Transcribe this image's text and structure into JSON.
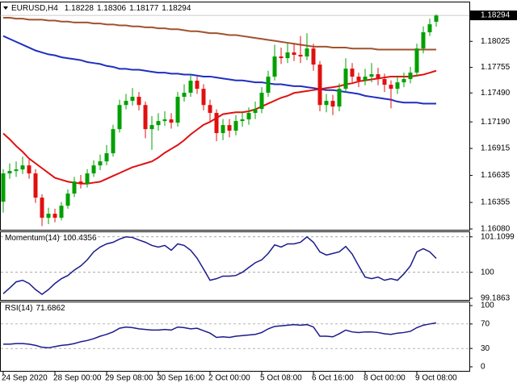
{
  "chart_data": [
    {
      "type": "candlestick",
      "title": "EURUSD,H4",
      "categories": [
        "24 Sep 2020",
        null,
        null,
        null,
        null,
        null,
        null,
        null,
        "28 Sep 00:00",
        null,
        null,
        null,
        null,
        null,
        null,
        null,
        "29 Sep 08:00",
        null,
        null,
        null,
        null,
        null,
        null,
        null,
        "30 Sep 16:00",
        null,
        null,
        null,
        null,
        null,
        null,
        null,
        "2 Oct 00:00",
        null,
        null,
        null,
        null,
        null,
        null,
        null,
        "5 Oct 08:00",
        null,
        null,
        null,
        null,
        null,
        null,
        null,
        "6 Oct 16:00",
        null,
        null,
        null,
        null,
        null,
        null,
        null,
        "8 Oct 00:00",
        null,
        null,
        null,
        null,
        null,
        null,
        null,
        "9 Oct 08:00",
        null,
        null,
        null
      ],
      "open": [
        1.16363,
        1.16656,
        1.16681,
        1.16697,
        1.16739,
        1.16656,
        1.16405,
        1.16196,
        1.16238,
        1.16196,
        1.16321,
        1.16447,
        1.16572,
        1.16547,
        1.16656,
        1.16739,
        1.16781,
        1.16865,
        1.17115,
        1.17365,
        1.17408,
        1.1745,
        1.17365,
        1.17115,
        1.17157,
        1.17199,
        1.17216,
        1.17182,
        1.1745,
        1.17492,
        1.17617,
        1.17533,
        1.17365,
        1.17283,
        1.17074,
        1.17157,
        1.17099,
        1.17199,
        1.17216,
        1.17283,
        1.17324,
        1.17492,
        1.17659,
        1.17868,
        1.17851,
        1.1791,
        1.17885,
        1.17868,
        1.17951,
        1.17784,
        1.17365,
        1.17408,
        1.17349,
        1.17533,
        1.17742,
        1.17659,
        1.17617,
        1.17659,
        1.17684,
        1.17634,
        1.17575,
        1.17533,
        1.176,
        1.17634,
        1.17701,
        1.17951,
        1.18119,
        1.18228
      ],
      "high": [
        1.167,
        1.1676,
        1.1678,
        1.1683,
        1.168,
        1.167,
        1.1644,
        1.163,
        1.1629,
        1.1636,
        1.1649,
        1.1662,
        1.1664,
        1.167,
        1.1679,
        1.1685,
        1.1695,
        1.1716,
        1.1742,
        1.1748,
        1.1754,
        1.175,
        1.174,
        1.1725,
        1.1728,
        1.173,
        1.1728,
        1.175,
        1.1758,
        1.1768,
        1.1766,
        1.1758,
        1.1742,
        1.1732,
        1.1722,
        1.1722,
        1.1726,
        1.1729,
        1.1734,
        1.174,
        1.1755,
        1.1772,
        1.1799,
        1.1796,
        1.1801,
        1.18,
        1.1808,
        1.1811,
        1.18,
        1.1782,
        1.1748,
        1.1747,
        1.1759,
        1.1785,
        1.178,
        1.177,
        1.1774,
        1.178,
        1.1775,
        1.1769,
        1.1762,
        1.1767,
        1.177,
        1.1776,
        1.18,
        1.1818,
        1.1826,
        1.18306
      ],
      "low": [
        1.1625,
        1.166,
        1.1662,
        1.1665,
        1.166,
        1.1635,
        1.1611,
        1.1613,
        1.1615,
        1.1617,
        1.1629,
        1.1641,
        1.165,
        1.1651,
        1.1662,
        1.1669,
        1.1674,
        1.1683,
        1.1708,
        1.1732,
        1.1736,
        1.1731,
        1.1702,
        1.169,
        1.171,
        1.1715,
        1.1712,
        1.1714,
        1.174,
        1.1745,
        1.1748,
        1.1731,
        1.172,
        1.1699,
        1.17,
        1.1703,
        1.1705,
        1.1714,
        1.1716,
        1.1722,
        1.1728,
        1.1745,
        1.1762,
        1.1779,
        1.178,
        1.1782,
        1.178,
        1.1783,
        1.1772,
        1.173,
        1.1729,
        1.1726,
        1.173,
        1.175,
        1.176,
        1.1755,
        1.1757,
        1.176,
        1.1757,
        1.175,
        1.1733,
        1.1748,
        1.1755,
        1.1759,
        1.1766,
        1.179,
        1.1808,
        1.18177
      ],
      "close": [
        1.16656,
        1.16681,
        1.16697,
        1.16739,
        1.16656,
        1.16405,
        1.16196,
        1.16238,
        1.16196,
        1.16321,
        1.16447,
        1.16572,
        1.16547,
        1.16656,
        1.16739,
        1.16781,
        1.16865,
        1.17115,
        1.17365,
        1.17408,
        1.1745,
        1.17365,
        1.17115,
        1.17157,
        1.17199,
        1.17216,
        1.17182,
        1.1745,
        1.17492,
        1.17617,
        1.17533,
        1.17365,
        1.17283,
        1.17074,
        1.17157,
        1.17099,
        1.17199,
        1.17216,
        1.17283,
        1.17324,
        1.17492,
        1.17659,
        1.17868,
        1.17851,
        1.1791,
        1.17885,
        1.17868,
        1.17951,
        1.17784,
        1.17365,
        1.17408,
        1.17349,
        1.17533,
        1.17742,
        1.17659,
        1.17617,
        1.17659,
        1.17684,
        1.17634,
        1.17575,
        1.17533,
        1.176,
        1.17634,
        1.17701,
        1.17951,
        1.18119,
        1.18202,
        1.18294
      ],
      "up_color": "#00a000",
      "down_color": "#e01010",
      "series": [
        {
          "color": "#a0522d",
          "values": [
            1.1827,
            1.1827,
            1.1826,
            1.1826,
            1.1825,
            1.1825,
            1.1825,
            1.1824,
            1.1824,
            1.1823,
            1.1823,
            1.1822,
            1.1822,
            1.1822,
            1.1821,
            1.1821,
            1.182,
            1.182,
            1.1819,
            1.1819,
            1.1818,
            1.1818,
            1.1817,
            1.1817,
            1.1816,
            1.1816,
            1.1815,
            1.1815,
            1.1814,
            1.1813,
            1.1813,
            1.1812,
            1.1811,
            1.1811,
            1.181,
            1.1809,
            1.1809,
            1.1808,
            1.1807,
            1.1806,
            1.1805,
            1.1804,
            1.1803,
            1.1802,
            1.1801,
            1.18,
            1.1799,
            1.1798,
            1.1797,
            1.1797,
            1.1797,
            1.1796,
            1.1796,
            1.1796,
            1.1795,
            1.1795,
            1.1795,
            1.1795,
            1.1794,
            1.1794,
            1.1794,
            1.1794,
            1.1794,
            1.1794,
            1.1794,
            1.1794,
            1.1794,
            1.1794
          ]
        },
        {
          "color": "#1f2fbf",
          "values": [
            1.1808,
            1.1805,
            1.1802,
            1.1799,
            1.1796,
            1.1793,
            1.1791,
            1.1789,
            1.1788,
            1.1786,
            1.1785,
            1.1784,
            1.1783,
            1.1781,
            1.178,
            1.1779,
            1.1777,
            1.1776,
            1.1774,
            1.1774,
            1.1773,
            1.1773,
            1.1772,
            1.1771,
            1.177,
            1.177,
            1.1769,
            1.1769,
            1.1768,
            1.1768,
            1.1767,
            1.1766,
            1.1766,
            1.1765,
            1.1764,
            1.1763,
            1.1762,
            1.1762,
            1.1761,
            1.176,
            1.176,
            1.1759,
            1.1758,
            1.1758,
            1.1757,
            1.1756,
            1.1756,
            1.1755,
            1.1754,
            1.1753,
            1.1752,
            1.1752,
            1.1751,
            1.175,
            1.1749,
            1.1748,
            1.1746,
            1.1745,
            1.1744,
            1.1743,
            1.1742,
            1.174,
            1.1739,
            1.1739,
            1.1739,
            1.1738,
            1.1738,
            1.1738
          ]
        },
        {
          "color": "#e01010",
          "values": [
            1.1707,
            1.1701,
            1.1694,
            1.1688,
            1.1681,
            1.1676,
            1.1671,
            1.1666,
            1.1661,
            1.1659,
            1.1657,
            1.1656,
            1.1655,
            1.1655,
            1.1656,
            1.1657,
            1.166,
            1.1663,
            1.1666,
            1.1669,
            1.1672,
            1.1674,
            1.1676,
            1.1678,
            1.1682,
            1.1687,
            1.1691,
            1.1695,
            1.17,
            1.1706,
            1.1711,
            1.1716,
            1.1719,
            1.1723,
            1.1727,
            1.1728,
            1.1729,
            1.1729,
            1.173,
            1.1732,
            1.1735,
            1.1738,
            1.1741,
            1.1744,
            1.1746,
            1.1749,
            1.175,
            1.1751,
            1.1752,
            1.1753,
            1.1754,
            1.1755,
            1.1756,
            1.1758,
            1.1759,
            1.1761,
            1.1762,
            1.1763,
            1.1764,
            1.1765,
            1.1766,
            1.1766,
            1.1766,
            1.1766,
            1.1767,
            1.1768,
            1.177,
            1.1772
          ]
        }
      ],
      "ylim": [
        1.1608,
        1.1842
      ],
      "yticks": [
        1.18025,
        1.17755,
        {
          "value": 1.1749,
          "label": "1.17490"
        },
        {
          "value": 1.1719,
          "label": "1.17190"
        },
        1.16915,
        1.16635,
        1.16355,
        {
          "value": 1.1608,
          "label": "1.16080"
        }
      ]
    },
    {
      "type": "line",
      "title": "Momentum(14)",
      "color": "#1a1a8c",
      "values": [
        99.33,
        99.51,
        99.7,
        99.75,
        99.65,
        99.46,
        99.31,
        99.46,
        99.65,
        99.8,
        99.9,
        100.07,
        100.2,
        100.39,
        100.64,
        100.79,
        100.89,
        100.94,
        101.04,
        101.11,
        101.09,
        101.01,
        100.94,
        100.84,
        100.79,
        100.84,
        100.69,
        100.89,
        100.84,
        100.69,
        100.44,
        100.1,
        99.75,
        99.8,
        99.88,
        99.88,
        99.9,
        100.0,
        100.15,
        100.3,
        100.39,
        100.59,
        100.86,
        100.79,
        100.89,
        100.89,
        100.94,
        101.11,
        100.94,
        100.64,
        100.54,
        100.59,
        100.64,
        100.81,
        100.57,
        100.2,
        99.85,
        99.8,
        99.85,
        99.75,
        99.8,
        99.75,
        99.95,
        100.2,
        100.64,
        100.74,
        100.64,
        100.4356
      ],
      "ylim": [
        99.16,
        101.23
      ],
      "yticks": [
        101.1099,
        100,
        99.1863
      ]
    },
    {
      "type": "line",
      "title": "RSI(14)",
      "color": "#1a1a8c",
      "values": [
        37,
        37,
        38,
        38,
        37,
        35,
        32,
        31,
        33,
        35,
        36,
        38,
        41,
        43,
        46,
        50,
        53,
        57,
        63,
        65,
        64,
        62,
        61,
        60,
        60,
        61,
        60,
        65,
        64,
        62,
        63,
        59,
        55,
        48,
        49,
        48,
        50,
        51,
        52,
        53,
        56,
        62,
        66,
        67,
        68,
        69,
        68,
        69,
        65,
        50,
        50,
        49,
        54,
        60,
        57,
        56,
        57,
        57,
        56,
        54,
        53,
        55,
        56,
        58,
        64,
        68,
        70,
        71.6862
      ],
      "ylim": [
        -4,
        104
      ],
      "yticks": [
        100,
        70,
        30,
        0
      ]
    }
  ]
}
